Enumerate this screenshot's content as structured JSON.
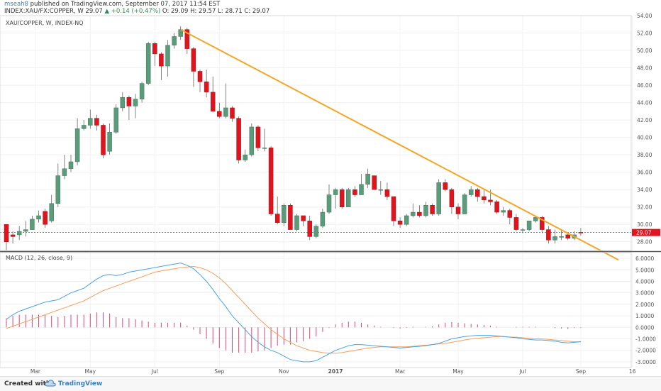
{
  "header": {
    "author": "mseah8",
    "published": " published on TradingView.com, September 07, 2017 11:54 EST",
    "symbol_line": "INDEX:XAU/FX:COPPER, W 29.07",
    "change": "▲ +0.14 (+0.47%)",
    "ohlc": "O: 29.09 H: 29.57 L: 28.71 C: 29.07"
  },
  "footer": {
    "created_with": "Created with",
    "brand": "TradingView"
  },
  "colors": {
    "up": "#5b9a7a",
    "down": "#e0141e",
    "trendline": "#f5a623",
    "macd": "#4aa3df",
    "signal": "#f5a05c",
    "hist": "#e0457b",
    "price_badge": "#e0141e"
  },
  "chart_data": [
    {
      "type": "candlestick",
      "title": "XAU/COPPER, W, INDEX-NQ",
      "ylim": [
        27,
        54
      ],
      "y_ticks": [
        "28.00",
        "30.00",
        "32.00",
        "34.00",
        "36.00",
        "38.00",
        "40.00",
        "42.00",
        "44.00",
        "46.00",
        "48.00",
        "50.00",
        "52.00",
        "54.00"
      ],
      "x_ticks": [
        "Mar",
        "May",
        "Jul",
        "Sep",
        "Nov",
        "2017",
        "Mar",
        "May",
        "Jul",
        "Sep",
        "16"
      ],
      "last_price": "29.07",
      "ohlc": [
        [
          30,
          28,
          30,
          27
        ],
        [
          28.8,
          28.6,
          29.2,
          27.8
        ],
        [
          28.8,
          29.2,
          29.8,
          28.2
        ],
        [
          29.2,
          29.4,
          30.4,
          28.6
        ],
        [
          29.4,
          30.6,
          31,
          29.4
        ],
        [
          30.6,
          31,
          31.6,
          30.2
        ],
        [
          31.5,
          30,
          31.8,
          29.6
        ],
        [
          30.4,
          32.4,
          33.4,
          30.2
        ],
        [
          32.4,
          35.6,
          37,
          32
        ],
        [
          35.6,
          36.4,
          38,
          35.2
        ],
        [
          36.4,
          37.2,
          38,
          36
        ],
        [
          37.2,
          41,
          42.2,
          36.8
        ],
        [
          41,
          41.4,
          42,
          40.8
        ],
        [
          41.4,
          42.2,
          43.2,
          41
        ],
        [
          42.2,
          41.4,
          42.6,
          40.8
        ],
        [
          41.4,
          38,
          41.6,
          37.6
        ],
        [
          38.4,
          40.6,
          41.6,
          38
        ],
        [
          40.6,
          43.4,
          43.8,
          40.4
        ],
        [
          43.4,
          44.6,
          45.2,
          43
        ],
        [
          44.6,
          43.6,
          44.8,
          42
        ],
        [
          43.6,
          44.4,
          45,
          42.2
        ],
        [
          44.4,
          46.2,
          46.4,
          44
        ],
        [
          46.2,
          50.8,
          51,
          46
        ],
        [
          50.8,
          49.6,
          51,
          48.2
        ],
        [
          49.6,
          48.2,
          49.8,
          46.6
        ],
        [
          48.2,
          50.6,
          51.2,
          47
        ],
        [
          50.6,
          51.6,
          52,
          50.2
        ],
        [
          51.6,
          52.4,
          52.8,
          51.2
        ],
        [
          52.4,
          50.2,
          52.6,
          49.6
        ],
        [
          50.2,
          47.6,
          50.4,
          45.8
        ],
        [
          47.6,
          46.4,
          47.8,
          45.2
        ],
        [
          46.4,
          45.2,
          47.8,
          44.6
        ],
        [
          45.2,
          43,
          47,
          43
        ],
        [
          43,
          42.4,
          44,
          42.2
        ],
        [
          42.4,
          43.4,
          46.2,
          42.2
        ],
        [
          43.4,
          42.2,
          43.6,
          41.8
        ],
        [
          42.2,
          37.4,
          42.4,
          37
        ],
        [
          37.4,
          38,
          38.6,
          37.2
        ],
        [
          38,
          41.2,
          41.6,
          37.8
        ],
        [
          41.2,
          38.8,
          41.4,
          38.4
        ],
        [
          38.8,
          38.8,
          41,
          38.4
        ],
        [
          38.8,
          31.2,
          39,
          31
        ],
        [
          31.2,
          30.2,
          33.2,
          30
        ],
        [
          30.2,
          32.2,
          32.4,
          29.8
        ],
        [
          32.2,
          29.4,
          32.4,
          29.4
        ],
        [
          29.4,
          31,
          31.2,
          29.2
        ],
        [
          31,
          30.4,
          31,
          29.8
        ],
        [
          30.4,
          28.6,
          31,
          28.2
        ],
        [
          28.6,
          29.8,
          30,
          28.4
        ],
        [
          29.8,
          31.4,
          31.8,
          29.6
        ],
        [
          31.4,
          33.4,
          34.6,
          31.2
        ],
        [
          33.4,
          34,
          34.2,
          31.8
        ],
        [
          34,
          32,
          34.2,
          31.8
        ],
        [
          32,
          34,
          34.2,
          32
        ],
        [
          34,
          33.4,
          34.4,
          33.2
        ],
        [
          33.4,
          34.6,
          35.8,
          33.4
        ],
        [
          34.6,
          35.8,
          36.4,
          34.2
        ],
        [
          35.6,
          34,
          35.6,
          34
        ],
        [
          34,
          34,
          35,
          33.4
        ],
        [
          34,
          33.2,
          34.8,
          32.8
        ],
        [
          33.2,
          30.4,
          33.2,
          29.8
        ],
        [
          30.4,
          30,
          30.8,
          29.6
        ],
        [
          30,
          31,
          31.2,
          29.8
        ],
        [
          31,
          31.4,
          32.4,
          30.8
        ],
        [
          31.4,
          31,
          32.2,
          30.8
        ],
        [
          31,
          32.2,
          32.6,
          30.8
        ],
        [
          32.2,
          31.2,
          32.4,
          31
        ],
        [
          31.2,
          34.8,
          35.2,
          31
        ],
        [
          34.8,
          34,
          35.2,
          33.8
        ],
        [
          34,
          32,
          34.2,
          31.2
        ],
        [
          32,
          31.2,
          32.4,
          30.6
        ],
        [
          31.2,
          33.4,
          33.6,
          31.2
        ],
        [
          33.4,
          34,
          34.4,
          33.2
        ],
        [
          34,
          33.2,
          34.2,
          32.6
        ],
        [
          33.2,
          32.8,
          34,
          32.4
        ],
        [
          32.8,
          32.6,
          34,
          32.2
        ],
        [
          32.6,
          31.4,
          32.8,
          31.2
        ],
        [
          31.4,
          31.6,
          32,
          31
        ],
        [
          31.6,
          30.8,
          31.8,
          30
        ],
        [
          30.8,
          29.4,
          31.2,
          29.2
        ],
        [
          29.4,
          29.4,
          29.6,
          29
        ],
        [
          29.4,
          30.4,
          30.4,
          29.2
        ],
        [
          30.4,
          30.8,
          31,
          30.2
        ],
        [
          30.8,
          29.4,
          31,
          29
        ],
        [
          29.4,
          28.2,
          29.8,
          27.8
        ],
        [
          28.2,
          28.6,
          29.4,
          27.8
        ],
        [
          28.6,
          28.6,
          29.4,
          28.2
        ],
        [
          28.8,
          28.4,
          28.9,
          28.2
        ],
        [
          28.4,
          28.8,
          29.2,
          28.2
        ],
        [
          29.09,
          29.07,
          29.57,
          28.71
        ]
      ],
      "trendline": {
        "from": {
          "x": 27,
          "y": 52.4
        },
        "to": {
          "x": 89,
          "y": 28.2
        }
      }
    },
    {
      "type": "line",
      "title": "MACD (12, 26, close, 9)",
      "ylim": [
        -3.5,
        6.5
      ],
      "y_ticks": [
        "6.0000",
        "5.0000",
        "4.0000",
        "3.0000",
        "2.0000",
        "1.0000",
        "0.0000",
        "-1.0000",
        "-2.0000",
        "-3.0000"
      ],
      "series": [
        {
          "name": "MACD",
          "values": [
            0.7,
            1.1,
            1.4,
            1.6,
            1.8,
            2.0,
            2.2,
            2.3,
            2.4,
            2.7,
            3.0,
            3.2,
            3.4,
            3.8,
            4.2,
            4.5,
            4.6,
            4.5,
            4.6,
            4.8,
            4.9,
            5.0,
            5.1,
            5.2,
            5.3,
            5.4,
            5.5,
            5.6,
            5.4,
            5.1,
            4.6,
            4.0,
            3.3,
            2.5,
            1.8,
            1.0,
            0.4,
            -0.2,
            -0.8,
            -1.3,
            -1.7,
            -2.0,
            -2.2,
            -2.5,
            -2.8,
            -2.9,
            -3.0,
            -3.0,
            -2.9,
            -2.6,
            -2.3,
            -2.0,
            -1.8,
            -1.6,
            -1.5,
            -1.5,
            -1.55,
            -1.6,
            -1.65,
            -1.7,
            -1.75,
            -1.8,
            -1.75,
            -1.7,
            -1.65,
            -1.6,
            -1.5,
            -1.4,
            -1.2,
            -1.0,
            -0.9,
            -0.8,
            -0.75,
            -0.7,
            -0.7,
            -0.7,
            -0.75,
            -0.8,
            -0.85,
            -0.9,
            -1.0,
            -1.05,
            -1.1,
            -1.1,
            -1.15,
            -1.2,
            -1.3,
            -1.35,
            -1.3,
            -1.25
          ]
        },
        {
          "name": "Signal",
          "values": [
            -0.1,
            0.1,
            0.3,
            0.5,
            0.7,
            0.9,
            1.1,
            1.3,
            1.5,
            1.7,
            1.9,
            2.1,
            2.3,
            2.6,
            2.9,
            3.2,
            3.4,
            3.6,
            3.8,
            4.0,
            4.2,
            4.4,
            4.6,
            4.8,
            4.9,
            5.0,
            5.1,
            5.2,
            5.25,
            5.3,
            5.2,
            5.0,
            4.7,
            4.3,
            3.8,
            3.2,
            2.6,
            2.0,
            1.4,
            0.8,
            0.3,
            -0.2,
            -0.6,
            -1.0,
            -1.3,
            -1.6,
            -1.8,
            -2.0,
            -2.1,
            -2.2,
            -2.25,
            -2.25,
            -2.2,
            -2.1,
            -2.0,
            -1.9,
            -1.8,
            -1.75,
            -1.7,
            -1.7,
            -1.7,
            -1.7,
            -1.7,
            -1.65,
            -1.6,
            -1.55,
            -1.5,
            -1.45,
            -1.4,
            -1.3,
            -1.2,
            -1.1,
            -1.0,
            -0.95,
            -0.9,
            -0.85,
            -0.8,
            -0.8,
            -0.85,
            -0.85,
            -0.9,
            -0.95,
            -1.0,
            -1.0,
            -1.05,
            -1.1,
            -1.15,
            -1.2,
            -1.25,
            -1.25
          ]
        },
        {
          "name": "Histogram",
          "values": [
            0.8,
            1.0,
            1.1,
            1.1,
            1.1,
            1.1,
            1.1,
            1.0,
            0.9,
            1.0,
            1.1,
            1.1,
            1.1,
            1.2,
            1.3,
            1.3,
            1.2,
            0.9,
            0.8,
            0.8,
            0.7,
            0.6,
            0.5,
            0.4,
            0.4,
            0.4,
            0.4,
            0.4,
            0.15,
            -0.2,
            -0.6,
            -1.0,
            -1.4,
            -1.8,
            -2.0,
            -2.2,
            -2.2,
            -2.2,
            -2.2,
            -2.1,
            -2.0,
            -1.8,
            -1.6,
            -1.5,
            -1.5,
            -1.3,
            -1.2,
            -1.0,
            -0.8,
            -0.4,
            -0.05,
            0.25,
            0.4,
            0.5,
            0.5,
            0.4,
            0.25,
            0.15,
            0.05,
            0.0,
            -0.05,
            -0.1,
            -0.05,
            0.05,
            0.0,
            0.05,
            0.1,
            0.25,
            0.4,
            0.45,
            0.4,
            0.35,
            0.3,
            0.25,
            0.2,
            0.15,
            0.05,
            0.0,
            0.0,
            0.05,
            0.05,
            0.05,
            0.05,
            0.0,
            0.0,
            -0.05,
            -0.1,
            -0.15,
            -0.05,
            -0.05
          ]
        }
      ]
    }
  ]
}
